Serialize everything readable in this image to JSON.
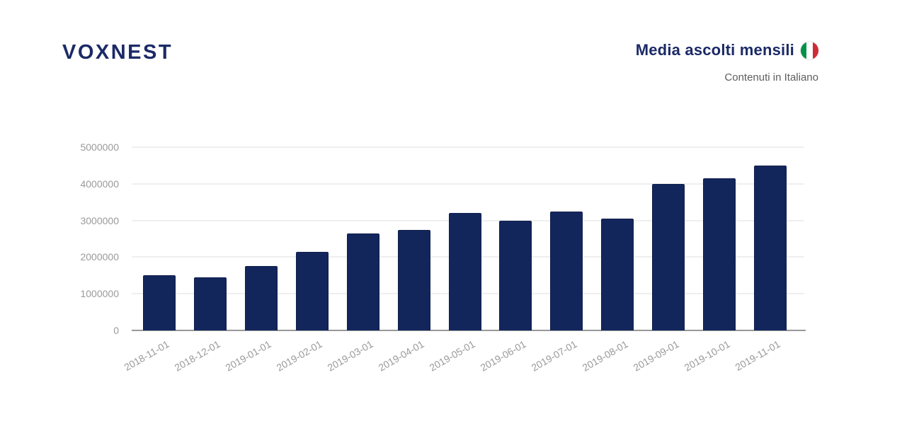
{
  "header": {
    "logo": "VOXNEST",
    "title": "Media ascolti mensili",
    "subtitle": "Contenuti in Italiano",
    "flag_icon": "italy-flag-icon"
  },
  "colors": {
    "navy_text": "#1b2a66",
    "bar_fill": "#13265c",
    "bar_border": "#0f1e4b",
    "axis_label": "#9a9a9a",
    "subtitle_text": "#5e5e5e",
    "gridline": "#efefef",
    "axis_line": "#999999",
    "flag_green": "#009246",
    "flag_white": "#ffffff",
    "flag_red": "#ce2b37"
  },
  "chart_data": {
    "type": "bar",
    "title": "Media ascolti mensili",
    "subtitle": "Contenuti in Italiano",
    "categories": [
      "2018-11-01",
      "2018-12-01",
      "2019-01-01",
      "2019-02-01",
      "2019-03-01",
      "2019-04-01",
      "2019-05-01",
      "2019-06-01",
      "2019-07-01",
      "2019-08-01",
      "2019-09-01",
      "2019-10-01",
      "2019-11-01"
    ],
    "values": [
      1500000,
      1450000,
      1750000,
      2150000,
      2650000,
      2750000,
      3200000,
      3000000,
      3250000,
      3050000,
      4000000,
      4150000,
      4500000
    ],
    "xlabel": "",
    "ylabel": "",
    "ylim": [
      0,
      5000000
    ],
    "yticks": [
      0,
      1000000,
      2000000,
      3000000,
      4000000,
      5000000
    ],
    "grid": true,
    "legend": false,
    "bar_color": "#13265c",
    "x_tick_rotation_deg": -30
  }
}
